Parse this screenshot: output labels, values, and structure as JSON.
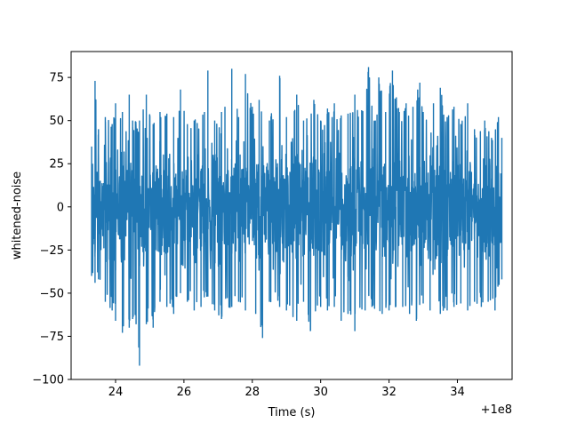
{
  "chart_data": {
    "type": "line",
    "title": "",
    "xlabel": "Time (s)",
    "ylabel": "whitened-noise",
    "x_offset_label": "+1e8",
    "xlim": [
      22.7,
      35.6
    ],
    "ylim": [
      -100,
      90
    ],
    "xticks": [
      24,
      26,
      28,
      30,
      32,
      34
    ],
    "xtick_labels": [
      "24",
      "26",
      "28",
      "30",
      "32",
      "34"
    ],
    "yticks": [
      -100,
      -75,
      -50,
      -25,
      0,
      25,
      50,
      75
    ],
    "ytick_labels": [
      "−100",
      "−75",
      "−50",
      "−25",
      "0",
      "25",
      "50",
      "75"
    ],
    "grid": false,
    "series": [
      {
        "color": "#1f77b4",
        "x_start": 23.3,
        "x_end": 35.3,
        "x_units_note": "",
        "envelope_top": [
          [
            23.3,
            35
          ],
          [
            23.4,
            73
          ],
          [
            23.5,
            45
          ],
          [
            23.7,
            52
          ],
          [
            23.9,
            48
          ],
          [
            24.0,
            60
          ],
          [
            24.2,
            55
          ],
          [
            24.4,
            65
          ],
          [
            24.5,
            50
          ],
          [
            24.7,
            50
          ],
          [
            24.9,
            65
          ],
          [
            25.1,
            48
          ],
          [
            25.3,
            55
          ],
          [
            25.5,
            54
          ],
          [
            25.7,
            52
          ],
          [
            25.9,
            68
          ],
          [
            26.1,
            48
          ],
          [
            26.3,
            50
          ],
          [
            26.6,
            55
          ],
          [
            26.7,
            79
          ],
          [
            26.9,
            50
          ],
          [
            27.1,
            55
          ],
          [
            27.2,
            58
          ],
          [
            27.4,
            80
          ],
          [
            27.6,
            52
          ],
          [
            27.8,
            77
          ],
          [
            28.0,
            58
          ],
          [
            28.2,
            62
          ],
          [
            28.5,
            50
          ],
          [
            28.8,
            76
          ],
          [
            29.0,
            52
          ],
          [
            29.3,
            65
          ],
          [
            29.5,
            50
          ],
          [
            29.8,
            62
          ],
          [
            30.0,
            50
          ],
          [
            30.2,
            57
          ],
          [
            30.4,
            60
          ],
          [
            30.6,
            53
          ],
          [
            30.8,
            54
          ],
          [
            31.0,
            65
          ],
          [
            31.2,
            56
          ],
          [
            31.4,
            81
          ],
          [
            31.6,
            50
          ],
          [
            31.7,
            75
          ],
          [
            31.9,
            55
          ],
          [
            32.1,
            79
          ],
          [
            32.3,
            55
          ],
          [
            32.5,
            60
          ],
          [
            32.7,
            58
          ],
          [
            32.9,
            72
          ],
          [
            33.0,
            55
          ],
          [
            33.3,
            60
          ],
          [
            33.5,
            69
          ],
          [
            33.7,
            52
          ],
          [
            33.9,
            58
          ],
          [
            34.1,
            48
          ],
          [
            34.3,
            60
          ],
          [
            34.5,
            45
          ],
          [
            34.8,
            50
          ],
          [
            35.0,
            40
          ],
          [
            35.2,
            52
          ],
          [
            35.3,
            40
          ]
        ],
        "envelope_bottom": [
          [
            23.3,
            -40
          ],
          [
            23.4,
            -44
          ],
          [
            23.5,
            -42
          ],
          [
            23.7,
            -55
          ],
          [
            23.9,
            -60
          ],
          [
            24.0,
            -66
          ],
          [
            24.2,
            -73
          ],
          [
            24.4,
            -70
          ],
          [
            24.5,
            -65
          ],
          [
            24.6,
            -68
          ],
          [
            24.7,
            -92
          ],
          [
            24.9,
            -68
          ],
          [
            25.1,
            -70
          ],
          [
            25.3,
            -55
          ],
          [
            25.5,
            -58
          ],
          [
            25.7,
            -62
          ],
          [
            25.9,
            -50
          ],
          [
            26.1,
            -55
          ],
          [
            26.3,
            -60
          ],
          [
            26.5,
            -58
          ],
          [
            26.7,
            -52
          ],
          [
            26.9,
            -60
          ],
          [
            27.1,
            -65
          ],
          [
            27.4,
            -58
          ],
          [
            27.6,
            -55
          ],
          [
            27.8,
            -60
          ],
          [
            28.1,
            -62
          ],
          [
            28.3,
            -76
          ],
          [
            28.5,
            -55
          ],
          [
            28.8,
            -58
          ],
          [
            29.0,
            -60
          ],
          [
            29.3,
            -66
          ],
          [
            29.5,
            -55
          ],
          [
            29.7,
            -72
          ],
          [
            30.0,
            -58
          ],
          [
            30.2,
            -60
          ],
          [
            30.4,
            -58
          ],
          [
            30.6,
            -66
          ],
          [
            30.8,
            -62
          ],
          [
            31.0,
            -72
          ],
          [
            31.3,
            -60
          ],
          [
            31.5,
            -58
          ],
          [
            31.8,
            -62
          ],
          [
            32.0,
            -60
          ],
          [
            32.2,
            -58
          ],
          [
            32.4,
            -58
          ],
          [
            32.6,
            -62
          ],
          [
            32.8,
            -66
          ],
          [
            33.0,
            -56
          ],
          [
            33.2,
            -60
          ],
          [
            33.5,
            -62
          ],
          [
            33.7,
            -60
          ],
          [
            33.9,
            -58
          ],
          [
            34.1,
            -56
          ],
          [
            34.3,
            -60
          ],
          [
            34.5,
            -55
          ],
          [
            34.7,
            -58
          ],
          [
            34.9,
            -55
          ],
          [
            35.1,
            -60
          ],
          [
            35.3,
            -42
          ]
        ]
      }
    ]
  }
}
